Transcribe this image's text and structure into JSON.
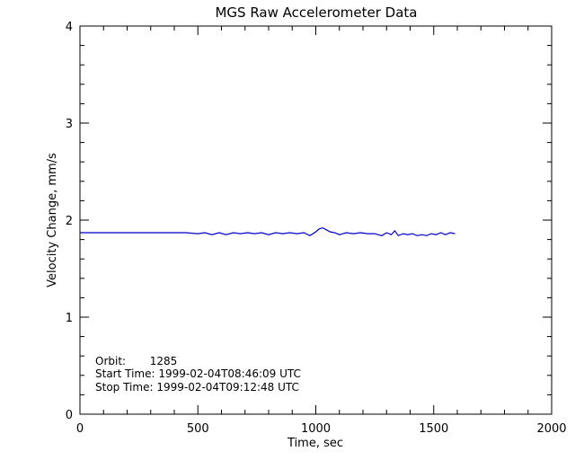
{
  "chart_data": {
    "type": "line",
    "title": "MGS Raw Accelerometer Data",
    "xlabel": "Time, sec",
    "ylabel": "Velocity Change, mm/s",
    "xlim": [
      0,
      2000
    ],
    "ylim": [
      0,
      4
    ],
    "xticks": [
      0,
      500,
      1000,
      1500,
      2000
    ],
    "xtick_labels": [
      "0",
      "500",
      "1000",
      "1500",
      "2000"
    ],
    "yticks": [
      0,
      1,
      2,
      3,
      4
    ],
    "ytick_labels": [
      "0",
      "1",
      "2",
      "3",
      "4"
    ],
    "grid": false,
    "legend": null,
    "annotations": {
      "orbit": "Orbit:       1285",
      "start_time": "Start Time: 1999-02-04T08:46:09 UTC",
      "stop_time": "Stop Time: 1999-02-04T09:12:48 UTC"
    },
    "series": [
      {
        "color": "#0000cc",
        "x": [
          0,
          50,
          100,
          150,
          200,
          250,
          300,
          350,
          400,
          450,
          500,
          530,
          560,
          590,
          620,
          650,
          680,
          710,
          740,
          770,
          800,
          830,
          860,
          890,
          920,
          950,
          975,
          1000,
          1015,
          1030,
          1045,
          1060,
          1080,
          1100,
          1130,
          1160,
          1190,
          1220,
          1250,
          1280,
          1300,
          1320,
          1335,
          1350,
          1370,
          1390,
          1410,
          1430,
          1450,
          1470,
          1490,
          1510,
          1530,
          1550,
          1570,
          1590
        ],
        "y": [
          1.87,
          1.87,
          1.87,
          1.87,
          1.87,
          1.87,
          1.87,
          1.87,
          1.87,
          1.87,
          1.86,
          1.87,
          1.85,
          1.87,
          1.85,
          1.87,
          1.86,
          1.87,
          1.86,
          1.87,
          1.85,
          1.87,
          1.86,
          1.87,
          1.86,
          1.87,
          1.84,
          1.88,
          1.91,
          1.92,
          1.9,
          1.88,
          1.87,
          1.85,
          1.87,
          1.86,
          1.87,
          1.86,
          1.86,
          1.84,
          1.87,
          1.85,
          1.89,
          1.84,
          1.86,
          1.85,
          1.86,
          1.84,
          1.85,
          1.84,
          1.86,
          1.85,
          1.87,
          1.85,
          1.87,
          1.86
        ]
      }
    ]
  }
}
